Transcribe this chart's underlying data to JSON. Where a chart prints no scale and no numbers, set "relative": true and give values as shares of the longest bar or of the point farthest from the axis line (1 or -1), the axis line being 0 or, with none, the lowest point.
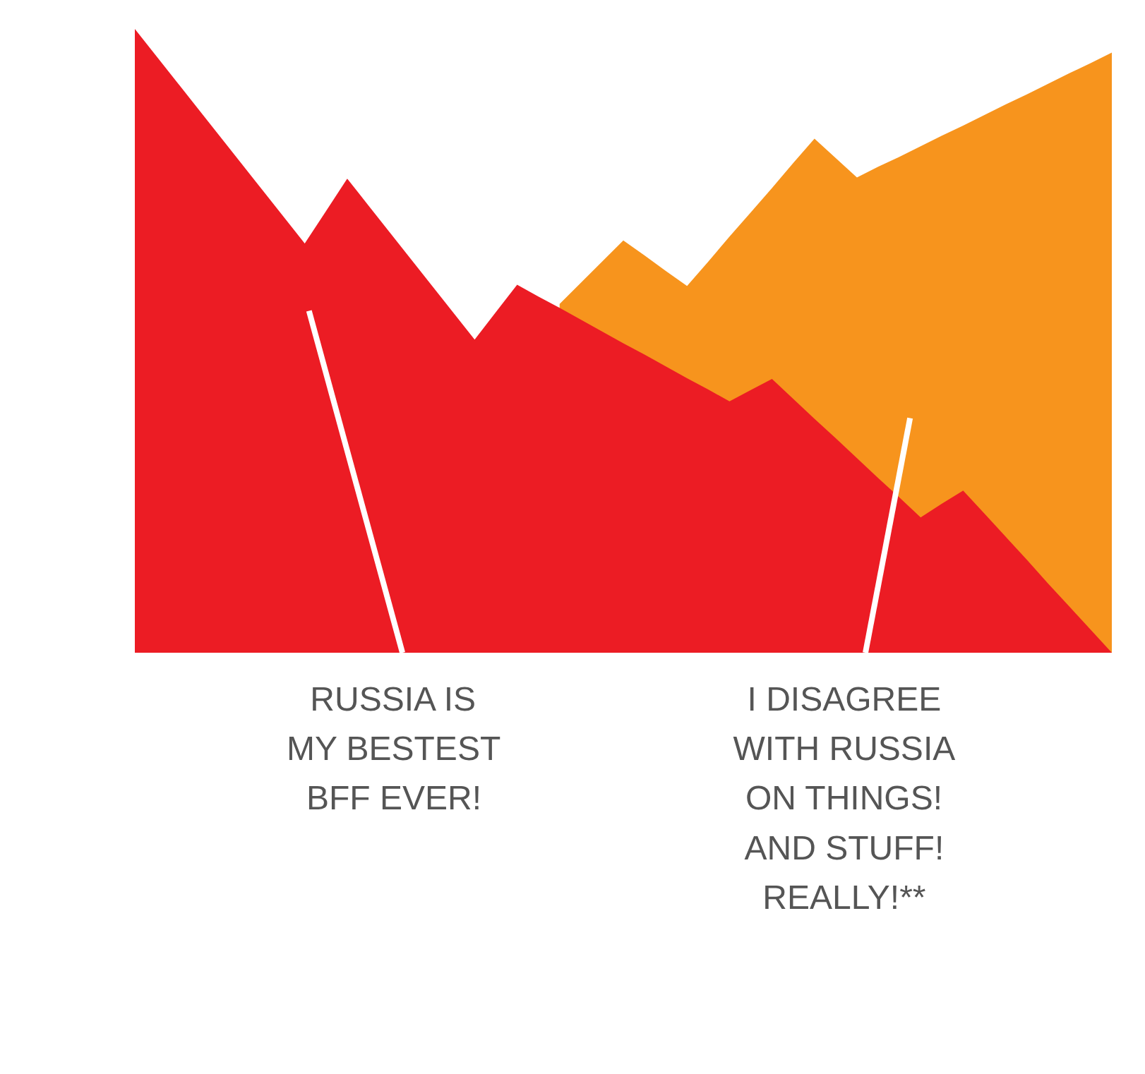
{
  "chart_data": {
    "type": "area",
    "relative": true,
    "tick_labels": false,
    "grid": false,
    "categories": [
      null,
      null,
      null,
      null,
      null,
      null,
      null,
      null,
      null,
      null,
      null,
      null,
      null,
      null,
      null,
      null,
      null,
      null,
      null,
      null,
      null,
      null,
      null,
      null,
      null,
      null,
      null,
      null,
      null,
      null,
      null,
      null,
      null,
      null,
      null,
      null,
      null,
      null,
      null,
      null,
      null,
      null,
      null,
      null,
      null,
      null,
      null
    ],
    "series": [
      {
        "color": "#f7941d",
        "values": [
          null,
          null,
          null,
          null,
          null,
          null,
          null,
          null,
          null,
          null,
          null,
          null,
          null,
          null,
          null,
          null,
          null,
          null,
          null,
          null,
          0.559,
          0.593,
          0.627,
          0.661,
          0.637,
          0.612,
          0.588,
          0.627,
          0.667,
          0.706,
          0.745,
          0.785,
          0.824,
          0.793,
          0.762,
          0.779,
          0.795,
          0.812,
          0.829,
          0.845,
          0.862,
          0.879,
          0.895,
          0.912,
          0.929,
          0.945,
          0.962
        ]
      },
      {
        "color": "#ec1c24",
        "values": [
          1.0,
          0.957,
          0.914,
          0.871,
          0.828,
          0.785,
          0.742,
          0.699,
          0.656,
          0.708,
          0.76,
          0.717,
          0.674,
          0.631,
          0.588,
          0.545,
          0.502,
          0.546,
          0.59,
          0.571,
          0.553,
          0.534,
          0.515,
          0.496,
          0.478,
          0.459,
          0.44,
          0.422,
          0.403,
          0.421,
          0.439,
          0.407,
          0.375,
          0.344,
          0.312,
          0.28,
          0.249,
          0.217,
          0.239,
          0.26,
          0.223,
          0.186,
          0.149,
          0.111,
          0.074,
          0.037,
          0
        ]
      }
    ],
    "annotations": [
      "RUSSIA IS\nMY BESTEST\nBFF EVER!",
      "I DISAGREE\nWITH RUSSIA\nON THINGS!\nAND STUFF!\nREALLY!**"
    ]
  }
}
